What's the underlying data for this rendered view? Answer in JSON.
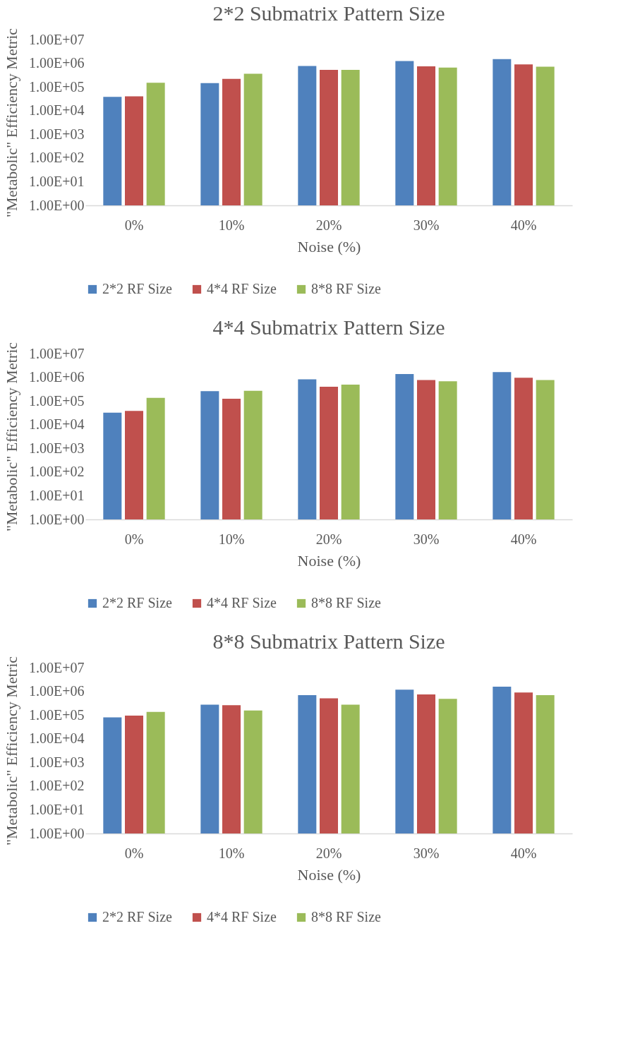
{
  "chart_data": [
    {
      "type": "bar",
      "title": "2*2 Submatrix Pattern Size",
      "xlabel": "Noise (%)",
      "ylabel": "\"Metabolic\" Efficiency Metric",
      "categories": [
        "0%",
        "10%",
        "20%",
        "30%",
        "40%"
      ],
      "log": true,
      "ylim": [
        1,
        10000000
      ],
      "yticks": [
        {
          "value": 1,
          "label": "1.00E+00"
        },
        {
          "value": 10,
          "label": "1.00E+01"
        },
        {
          "value": 100,
          "label": "1.00E+02"
        },
        {
          "value": 1000,
          "label": "1.00E+03"
        },
        {
          "value": 10000,
          "label": "1.00E+04"
        },
        {
          "value": 100000,
          "label": "1.00E+05"
        },
        {
          "value": 1000000,
          "label": "1.00E+06"
        },
        {
          "value": 10000000,
          "label": "1.00E+07"
        }
      ],
      "grid": false,
      "legend": "bottom",
      "series": [
        {
          "name": "2*2 RF Size",
          "color": "#4f81bd",
          "values": [
            38000,
            145000,
            760000,
            1230000,
            1500000
          ]
        },
        {
          "name": "4*4 RF Size",
          "color": "#c0504d",
          "values": [
            40000,
            220000,
            520000,
            740000,
            890000
          ]
        },
        {
          "name": "8*8 RF Size",
          "color": "#9bbb59",
          "values": [
            150000,
            360000,
            520000,
            660000,
            710000
          ]
        }
      ]
    },
    {
      "type": "bar",
      "title": "4*4 Submatrix Pattern Size",
      "xlabel": "Noise (%)",
      "ylabel": "\"Metabolic\" Efficiency Metric",
      "categories": [
        "0%",
        "10%",
        "20%",
        "30%",
        "40%"
      ],
      "log": true,
      "ylim": [
        1,
        10000000
      ],
      "yticks": [
        {
          "value": 1,
          "label": "1.00E+00"
        },
        {
          "value": 10,
          "label": "1.00E+01"
        },
        {
          "value": 100,
          "label": "1.00E+02"
        },
        {
          "value": 1000,
          "label": "1.00E+03"
        },
        {
          "value": 10000,
          "label": "1.00E+04"
        },
        {
          "value": 100000,
          "label": "1.00E+05"
        },
        {
          "value": 1000000,
          "label": "1.00E+06"
        },
        {
          "value": 10000000,
          "label": "1.00E+07"
        }
      ],
      "grid": false,
      "legend": "bottom",
      "series": [
        {
          "name": "2*2 RF Size",
          "color": "#4f81bd",
          "values": [
            32000,
            260000,
            820000,
            1370000,
            1650000
          ]
        },
        {
          "name": "4*4 RF Size",
          "color": "#c0504d",
          "values": [
            38000,
            125000,
            400000,
            760000,
            960000
          ]
        },
        {
          "name": "8*8 RF Size",
          "color": "#9bbb59",
          "values": [
            135000,
            270000,
            490000,
            680000,
            760000
          ]
        }
      ]
    },
    {
      "type": "bar",
      "title": "8*8 Submatrix Pattern Size",
      "xlabel": "Noise (%)",
      "ylabel": "\"Metabolic\" Efficiency Metric",
      "categories": [
        "0%",
        "10%",
        "20%",
        "30%",
        "40%"
      ],
      "log": true,
      "ylim": [
        1,
        10000000
      ],
      "yticks": [
        {
          "value": 1,
          "label": "1.00E+00"
        },
        {
          "value": 10,
          "label": "1.00E+01"
        },
        {
          "value": 100,
          "label": "1.00E+02"
        },
        {
          "value": 1000,
          "label": "1.00E+03"
        },
        {
          "value": 10000,
          "label": "1.00E+04"
        },
        {
          "value": 100000,
          "label": "1.00E+05"
        },
        {
          "value": 1000000,
          "label": "1.00E+06"
        },
        {
          "value": 10000000,
          "label": "1.00E+07"
        }
      ],
      "grid": false,
      "legend": "bottom",
      "series": [
        {
          "name": "2*2 RF Size",
          "color": "#4f81bd",
          "values": [
            80000,
            275000,
            690000,
            1170000,
            1580000
          ]
        },
        {
          "name": "4*4 RF Size",
          "color": "#c0504d",
          "values": [
            95000,
            260000,
            510000,
            740000,
            890000
          ]
        },
        {
          "name": "8*8 RF Size",
          "color": "#9bbb59",
          "values": [
            135000,
            155000,
            275000,
            480000,
            690000
          ]
        }
      ]
    }
  ]
}
